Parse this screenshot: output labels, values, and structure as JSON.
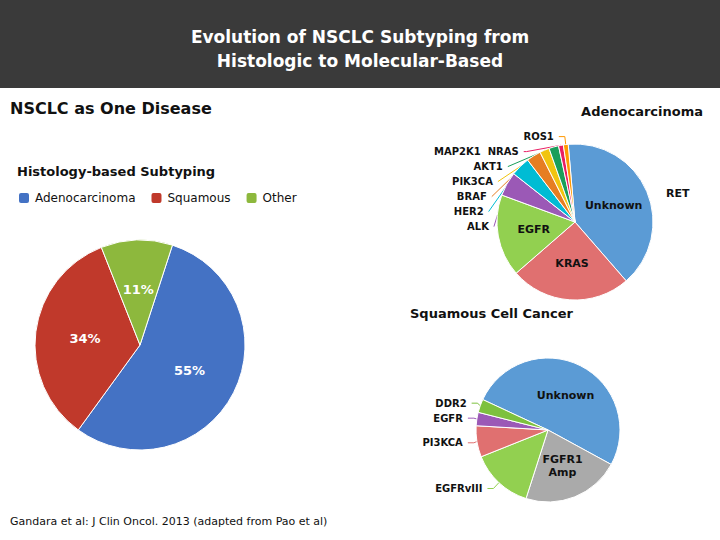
{
  "chart_data": [
    {
      "type": "pie",
      "title": "Evolution of NSCLC Subtyping from\nHistologic to Molecular-Based",
      "subtitle": "Histology-based Subtyping",
      "annotations": [
        "NSCLC as One Disease",
        "Gandara et al: J Clin Oncol. 2013 (adapted from Pao et al)"
      ],
      "categories": [
        "Adenocarcinoma",
        "Squamous",
        "Other"
      ],
      "values": [
        55,
        34,
        11
      ],
      "value_labels": [
        "55%",
        "34%",
        "11%"
      ],
      "colors": [
        "#4472c4",
        "#c0392b",
        "#8db83d"
      ],
      "data_labels": true,
      "legend": "upper left"
    },
    {
      "type": "pie",
      "title": "Adenocarcinoma",
      "annotations": [
        "RET"
      ],
      "categories": [
        "Unknown",
        "KRAS",
        "EGFR",
        "ALK",
        "HER2",
        "BRAF",
        "PIK3CA",
        "AKT1",
        "MAP2K1  NRAS",
        "ROS1"
      ],
      "values": [
        40,
        25,
        17,
        5,
        4,
        3,
        2,
        2,
        1,
        1
      ],
      "colors": [
        "#5b9bd5",
        "#e07070",
        "#92d050",
        "#9b59b6",
        "#00bcd4",
        "#e67e22",
        "#f1c40f",
        "#1a9e5a",
        "#e91e63",
        "#ff9800"
      ]
    },
    {
      "type": "pie",
      "title": "Squamous Cell Cancer",
      "categories": [
        "Unknown",
        "FGFR1\nAmp",
        "EGFRvIII",
        "PI3KCA",
        "EGFR",
        "DDR2"
      ],
      "values": [
        51,
        22,
        14,
        7,
        3,
        3
      ],
      "colors": [
        "#5b9bd5",
        "#aaaaaa",
        "#92d050",
        "#e07070",
        "#9b59b6",
        "#7dc13e"
      ]
    }
  ]
}
